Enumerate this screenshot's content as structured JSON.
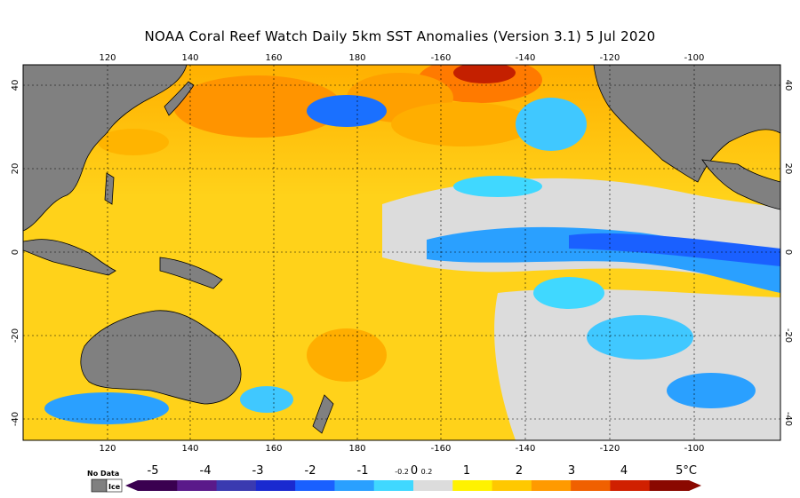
{
  "title": "NOAA Coral Reef Watch Daily 5km SST Anomalies (Version 3.1)   5 Jul 2020",
  "map": {
    "top_lon_ticks": [
      "120",
      "140",
      "160",
      "180",
      "-160",
      "-140",
      "-120",
      "-100"
    ],
    "bottom_lon_ticks": [
      "120",
      "140",
      "160",
      "180",
      "-160",
      "-140",
      "-120",
      "-100"
    ],
    "left_lat_ticks": [
      "40",
      "20",
      "0",
      "-20",
      "-40"
    ],
    "right_lat_ticks": [
      "40",
      "20",
      "0",
      "-20",
      "-40"
    ]
  },
  "colorbar": {
    "nodata_label": "No Data",
    "ice_label": "Ice",
    "unit": "°C",
    "tick_labels": [
      "-5",
      "-4",
      "-3",
      "-2",
      "-1",
      "-0.2",
      "0",
      "0.2",
      "1",
      "2",
      "3",
      "4",
      "5°C"
    ],
    "stops": [
      "#3a0050",
      "#5a1a8a",
      "#3a3ab0",
      "#1a2ad0",
      "#1a60ff",
      "#2aa0ff",
      "#40d8ff",
      "#dcdcdc",
      "#fff200",
      "#ffc800",
      "#ff9a00",
      "#f06000",
      "#d02000",
      "#8a0800"
    ]
  },
  "colors": {
    "land": "#808080",
    "warm": "#ffd21a",
    "hot": "#ff8a00",
    "cold": "#1a8cff",
    "neutral": "#dcdcdc"
  }
}
